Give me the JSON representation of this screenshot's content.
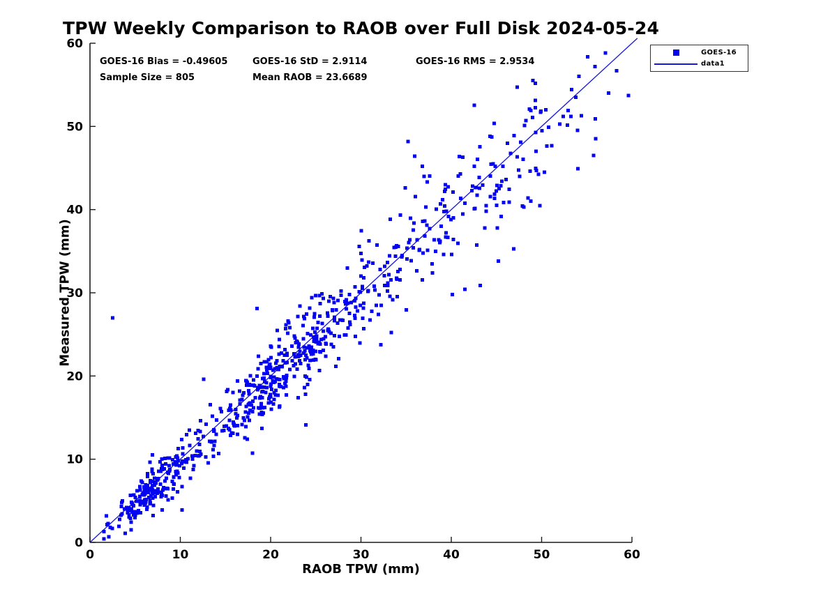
{
  "chart": {
    "annotations": {
      "bias": "GOES-16 Bias = -0.49605",
      "std": "GOES-16 StD = 2.9114",
      "rms": "GOES-16 RMS = 2.9534",
      "sample": "Sample Size = 805",
      "mean": "Mean RAOB = 23.6689"
    }
  },
  "chart_data": {
    "type": "scatter",
    "title": "TPW Weekly Comparison to RAOB over Full Disk 2024-05-24",
    "xlabel": "RAOB TPW (mm)",
    "ylabel": "Measured TPW (mm)",
    "xlim": [
      0,
      60
    ],
    "ylim": [
      0,
      60
    ],
    "x_ticks": [
      0,
      10,
      20,
      30,
      40,
      50,
      60
    ],
    "y_ticks": [
      0,
      10,
      20,
      30,
      40,
      50,
      60
    ],
    "grid": false,
    "legend_position": "top-right",
    "axis_color": "#1a1a1a",
    "stats": {
      "bias": -0.49605,
      "std": 2.9114,
      "rms": 2.9534,
      "sample_size": 805,
      "mean_raob": 23.6689
    },
    "series": [
      {
        "name": "GOES-16",
        "type": "scatter",
        "marker": "filled-square",
        "marker_size_px": 5,
        "color": "#0404ee",
        "sample_size": 805,
        "relationship": "y = x - 0.496 + noise (residual std ~2.91 mm)",
        "notable_points": [
          [
            2.5,
            27.0
          ],
          [
            23.9,
            14.1
          ],
          [
            18.5,
            28.1
          ],
          [
            12.6,
            19.6
          ],
          [
            35.2,
            48.2
          ],
          [
            49.3,
            55.2
          ],
          [
            55.9,
            57.2
          ],
          [
            58.3,
            56.7
          ],
          [
            59.6,
            53.7
          ],
          [
            53.8,
            53.5
          ],
          [
            57.4,
            54.0
          ],
          [
            8.0,
            3.9
          ],
          [
            1.8,
            3.2
          ],
          [
            44.3,
            48.8
          ],
          [
            40.9,
            46.4
          ],
          [
            36.8,
            45.2
          ],
          [
            34.9,
            42.6
          ],
          [
            49.9,
            51.7
          ],
          [
            48.8,
            51.9
          ],
          [
            52.4,
            51.2
          ],
          [
            54.0,
            44.9
          ],
          [
            50.3,
            44.5
          ],
          [
            46.4,
            40.9
          ],
          [
            48.5,
            41.4
          ],
          [
            40.1,
            29.8
          ],
          [
            41.5,
            30.4
          ],
          [
            43.2,
            30.9
          ],
          [
            45.2,
            33.8
          ],
          [
            46.9,
            35.3
          ],
          [
            10.2,
            3.9
          ]
        ],
        "generator": {
          "seed": 42,
          "bias": -0.496,
          "noise_base": 0.9,
          "noise_per_x": 0.065,
          "y_min": 0.4,
          "y_max": 59.6,
          "x_mixture": [
            {
              "weight": 0.3,
              "mean": 7.5,
              "sd": 2.8,
              "min": 1.5,
              "max": 14
            },
            {
              "weight": 0.38,
              "mean": 21.0,
              "sd": 4.5,
              "min": 11,
              "max": 33
            },
            {
              "weight": 0.22,
              "mean": 33.0,
              "sd": 6.0,
              "min": 24,
              "max": 48
            },
            {
              "weight": 0.1,
              "mean": 47.0,
              "sd": 5.5,
              "min": 38,
              "max": 59.5
            }
          ]
        }
      },
      {
        "name": "data1",
        "type": "line",
        "points": [
          [
            0,
            0
          ],
          [
            60.6,
            60.6
          ]
        ],
        "color": "#1616d8",
        "width": 1.3
      }
    ]
  }
}
